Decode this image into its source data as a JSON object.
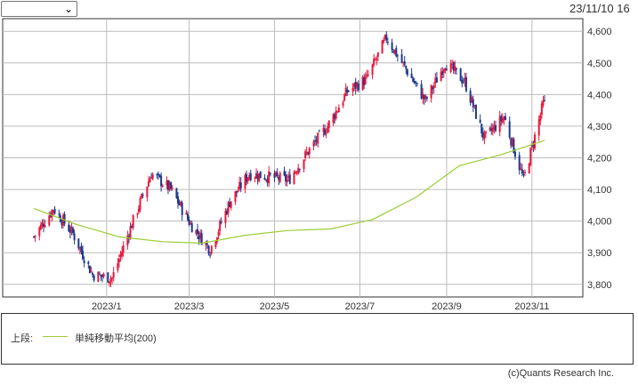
{
  "header": {
    "period_selector_value": "",
    "timestamp": "23/11/10 16"
  },
  "legend": {
    "prefix": "上段:",
    "series_label": "単純移動平均(200)"
  },
  "footer": {
    "credit": "(c)Quants Research Inc."
  },
  "colors": {
    "up": "#e8193c",
    "down": "#1d3a8f",
    "ma": "#9acd32",
    "grid": "#bbbbbb"
  },
  "chart_data": {
    "type": "line",
    "subtype": "candlestick",
    "x_tick_labels": [
      "2023/1",
      "2023/3",
      "2023/5",
      "2023/7",
      "2023/9",
      "2023/11"
    ],
    "y_tick_labels": [
      "4,600",
      "4,500",
      "4,400",
      "4,300",
      "4,200",
      "4,100",
      "4,000",
      "3,900",
      "3,800"
    ],
    "ylim": [
      3760,
      4640
    ],
    "y_ticks": [
      4600,
      4500,
      4400,
      4300,
      4200,
      4100,
      4000,
      3900,
      3800
    ],
    "grid": true,
    "x_tick_dates": [
      "2023-01-01",
      "2023-03-01",
      "2023-05-01",
      "2023-07-01",
      "2023-09-01",
      "2023-11-01"
    ],
    "date_range": [
      "2022-11-10",
      "2023-11-10"
    ],
    "series": [
      {
        "name": "price",
        "x": [
          "2022-11-10",
          "2022-11-24",
          "2022-12-08",
          "2022-12-22",
          "2023-01-05",
          "2023-01-19",
          "2023-02-02",
          "2023-02-16",
          "2023-03-02",
          "2023-03-16",
          "2023-03-30",
          "2023-04-13",
          "2023-04-27",
          "2023-05-11",
          "2023-05-25",
          "2023-06-08",
          "2023-06-22",
          "2023-07-06",
          "2023-07-20",
          "2023-08-03",
          "2023-08-17",
          "2023-08-31",
          "2023-09-14",
          "2023-09-28",
          "2023-10-12",
          "2023-10-26",
          "2023-11-09"
        ],
        "y": [
          3950,
          4040,
          3960,
          3830,
          3820,
          3990,
          4150,
          4100,
          3990,
          3910,
          4060,
          4150,
          4140,
          4130,
          4220,
          4300,
          4410,
          4450,
          4580,
          4480,
          4380,
          4500,
          4440,
          4260,
          4330,
          4130,
          4370
        ]
      },
      {
        "name": "単純移動平均(200)",
        "x": [
          "2022-11-10",
          "2022-12-10",
          "2023-01-10",
          "2023-02-10",
          "2023-03-10",
          "2023-04-10",
          "2023-05-10",
          "2023-06-10",
          "2023-07-10",
          "2023-08-10",
          "2023-09-10",
          "2023-10-10",
          "2023-11-10"
        ],
        "y": [
          4040,
          3990,
          3950,
          3935,
          3930,
          3955,
          3970,
          3975,
          4005,
          4075,
          4175,
          4210,
          4255
        ]
      }
    ]
  }
}
